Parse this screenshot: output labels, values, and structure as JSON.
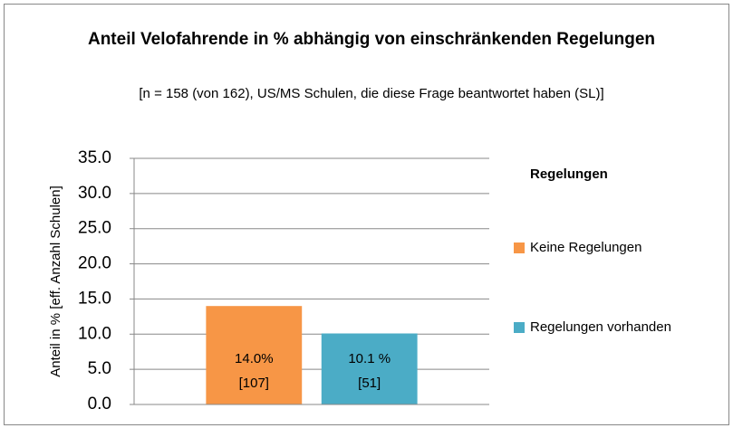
{
  "chart_data": {
    "type": "bar",
    "title": "Anteil Velofahrende in % abhängig von einschränkenden Regelungen",
    "subtitle": "[n = 158 (von 162), US/MS Schulen, die diese Frage beantwortet haben (SL)]",
    "y_label": "Anteil in % [eff. Anzahl Schulen]",
    "legend_title": "Regelungen",
    "legend_position": "right",
    "categories": [
      null
    ],
    "series": [
      {
        "name": "Keine Regelungen",
        "color": "#f79646",
        "values": [
          14.0
        ],
        "value_labels": [
          "14.0%"
        ],
        "count_labels": [
          "[107]"
        ]
      },
      {
        "name": "Regelungen vorhanden",
        "color": "#4bacc6",
        "values": [
          10.1
        ],
        "value_labels": [
          "10.1 %"
        ],
        "count_labels": [
          "[51]"
        ]
      }
    ],
    "ylim": [
      0,
      35
    ],
    "yticks": [
      {
        "value": 0,
        "label": "0.0"
      },
      {
        "value": 5,
        "label": "5.0"
      },
      {
        "value": 10,
        "label": "10.0"
      },
      {
        "value": 15,
        "label": "15.0"
      },
      {
        "value": 20,
        "label": "20.0"
      },
      {
        "value": 25,
        "label": "25.0"
      },
      {
        "value": 30,
        "label": "30.0"
      },
      {
        "value": 35,
        "label": "35.0"
      }
    ],
    "grid": true
  }
}
